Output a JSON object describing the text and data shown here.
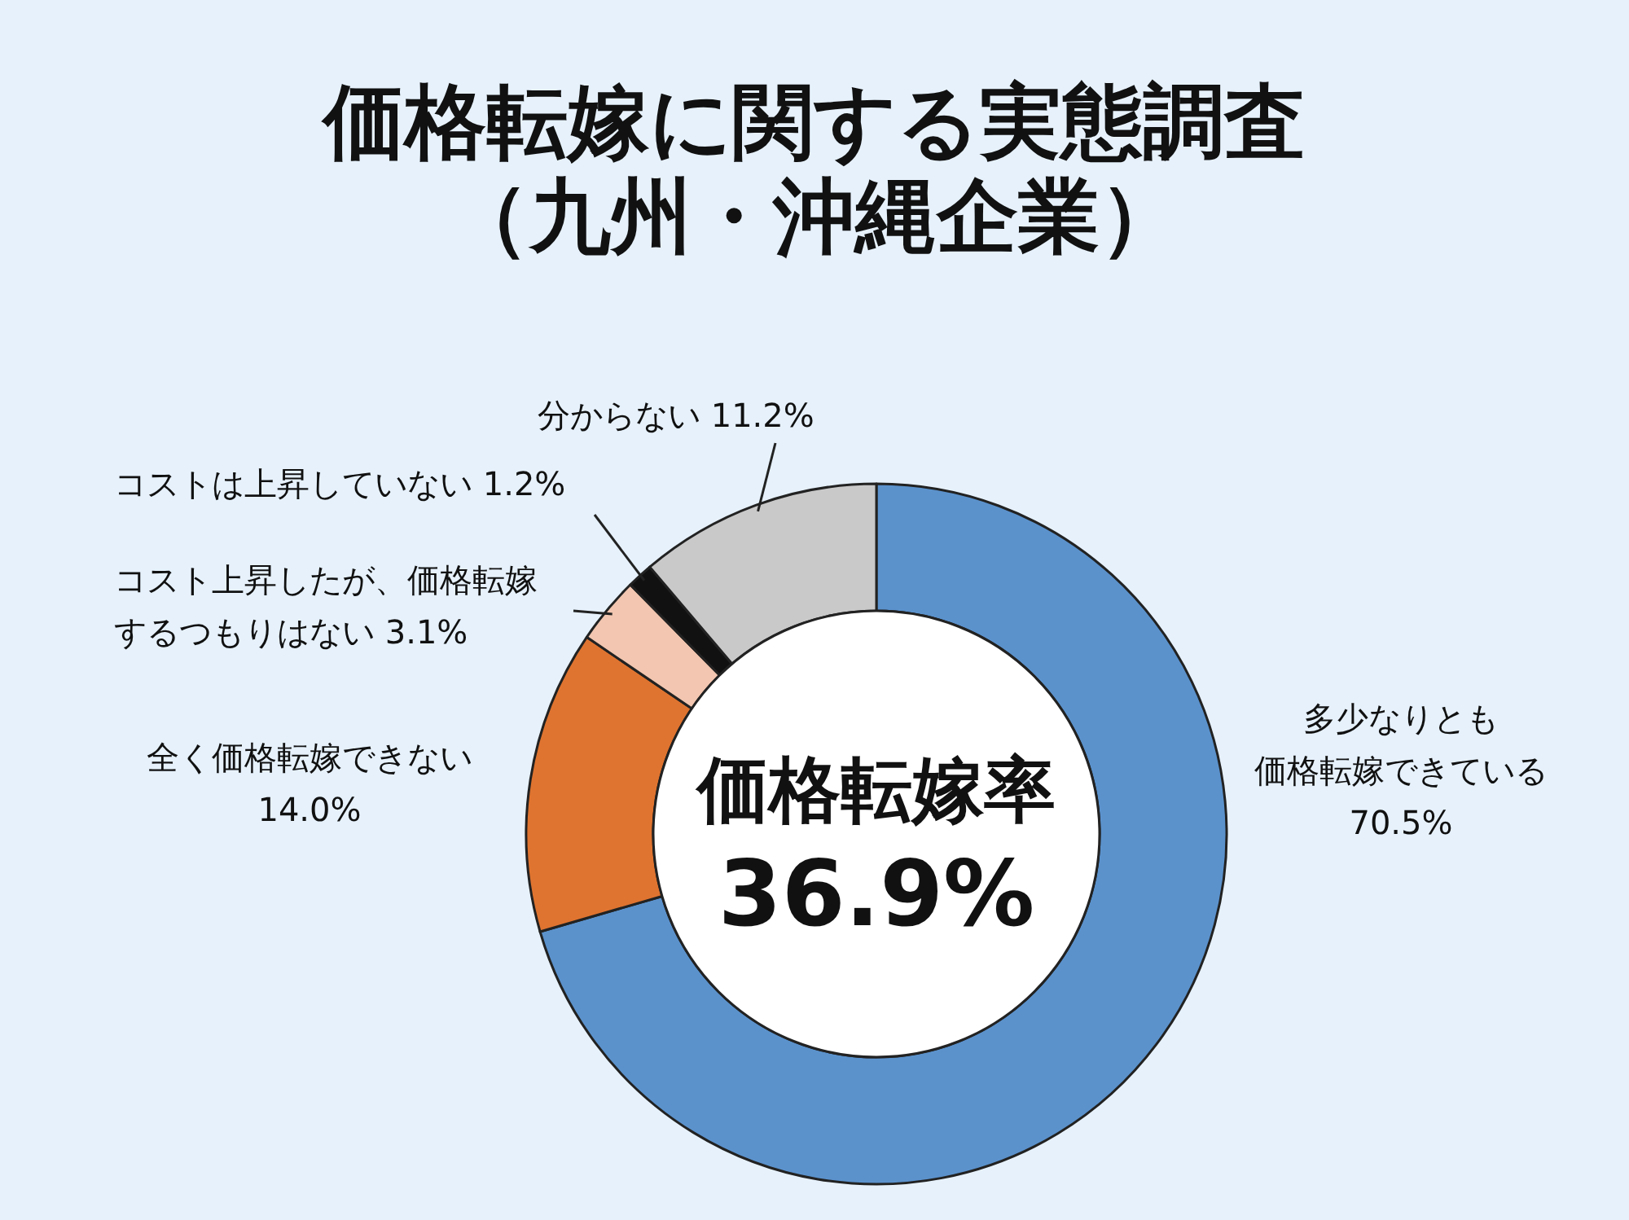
{
  "chart_data": {
    "type": "donut",
    "title": "価格転嫁に関する実態調査（九州・沖縄企業）",
    "categories": [
      "多少なりとも価格転嫁できている",
      "全く価格転嫁できない",
      "コスト上昇したが、価格転嫁するつもりはない",
      "コストは上昇していない",
      "分からない"
    ],
    "values": [
      70.5,
      14.0,
      3.1,
      1.2,
      11.2
    ],
    "value_labels": [
      "70.5%",
      "14.0%",
      "3.1%",
      "1.2%",
      "11.2%"
    ],
    "colors": [
      "#5b92cc",
      "#df7430",
      "#f2c6b0",
      "#111111",
      "#c9c9c9"
    ],
    "annotations": [
      "価格転嫁率",
      "36.9%"
    ]
  }
}
